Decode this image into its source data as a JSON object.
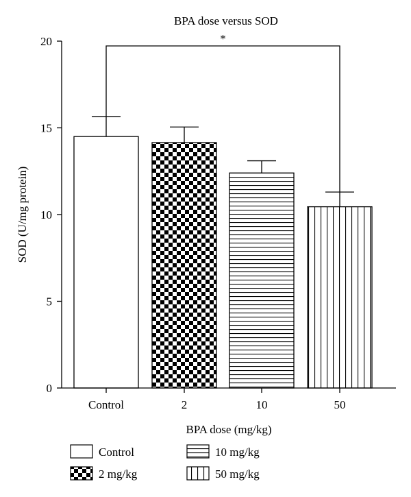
{
  "chart_data": {
    "type": "bar",
    "title": "BPA dose versus SOD",
    "xlabel": "BPA dose (mg/kg)",
    "ylabel": "SOD (U/mg protein)",
    "ylim": [
      0,
      20
    ],
    "yticks": [
      "0",
      "5",
      "10",
      "15",
      "20"
    ],
    "categories": [
      "Control",
      "2",
      "10",
      "50"
    ],
    "values": [
      14.5,
      14.15,
      12.4,
      10.45
    ],
    "errors": [
      1.15,
      0.9,
      0.7,
      0.85
    ],
    "significance": {
      "from": "Control",
      "to": "50",
      "label": "*"
    },
    "legend": [
      "Control",
      "2 mg/kg",
      "10 mg/kg",
      "50 mg/kg"
    ],
    "patterns": [
      "none",
      "checker",
      "horizontal-lines",
      "vertical-lines"
    ],
    "grid": false
  }
}
